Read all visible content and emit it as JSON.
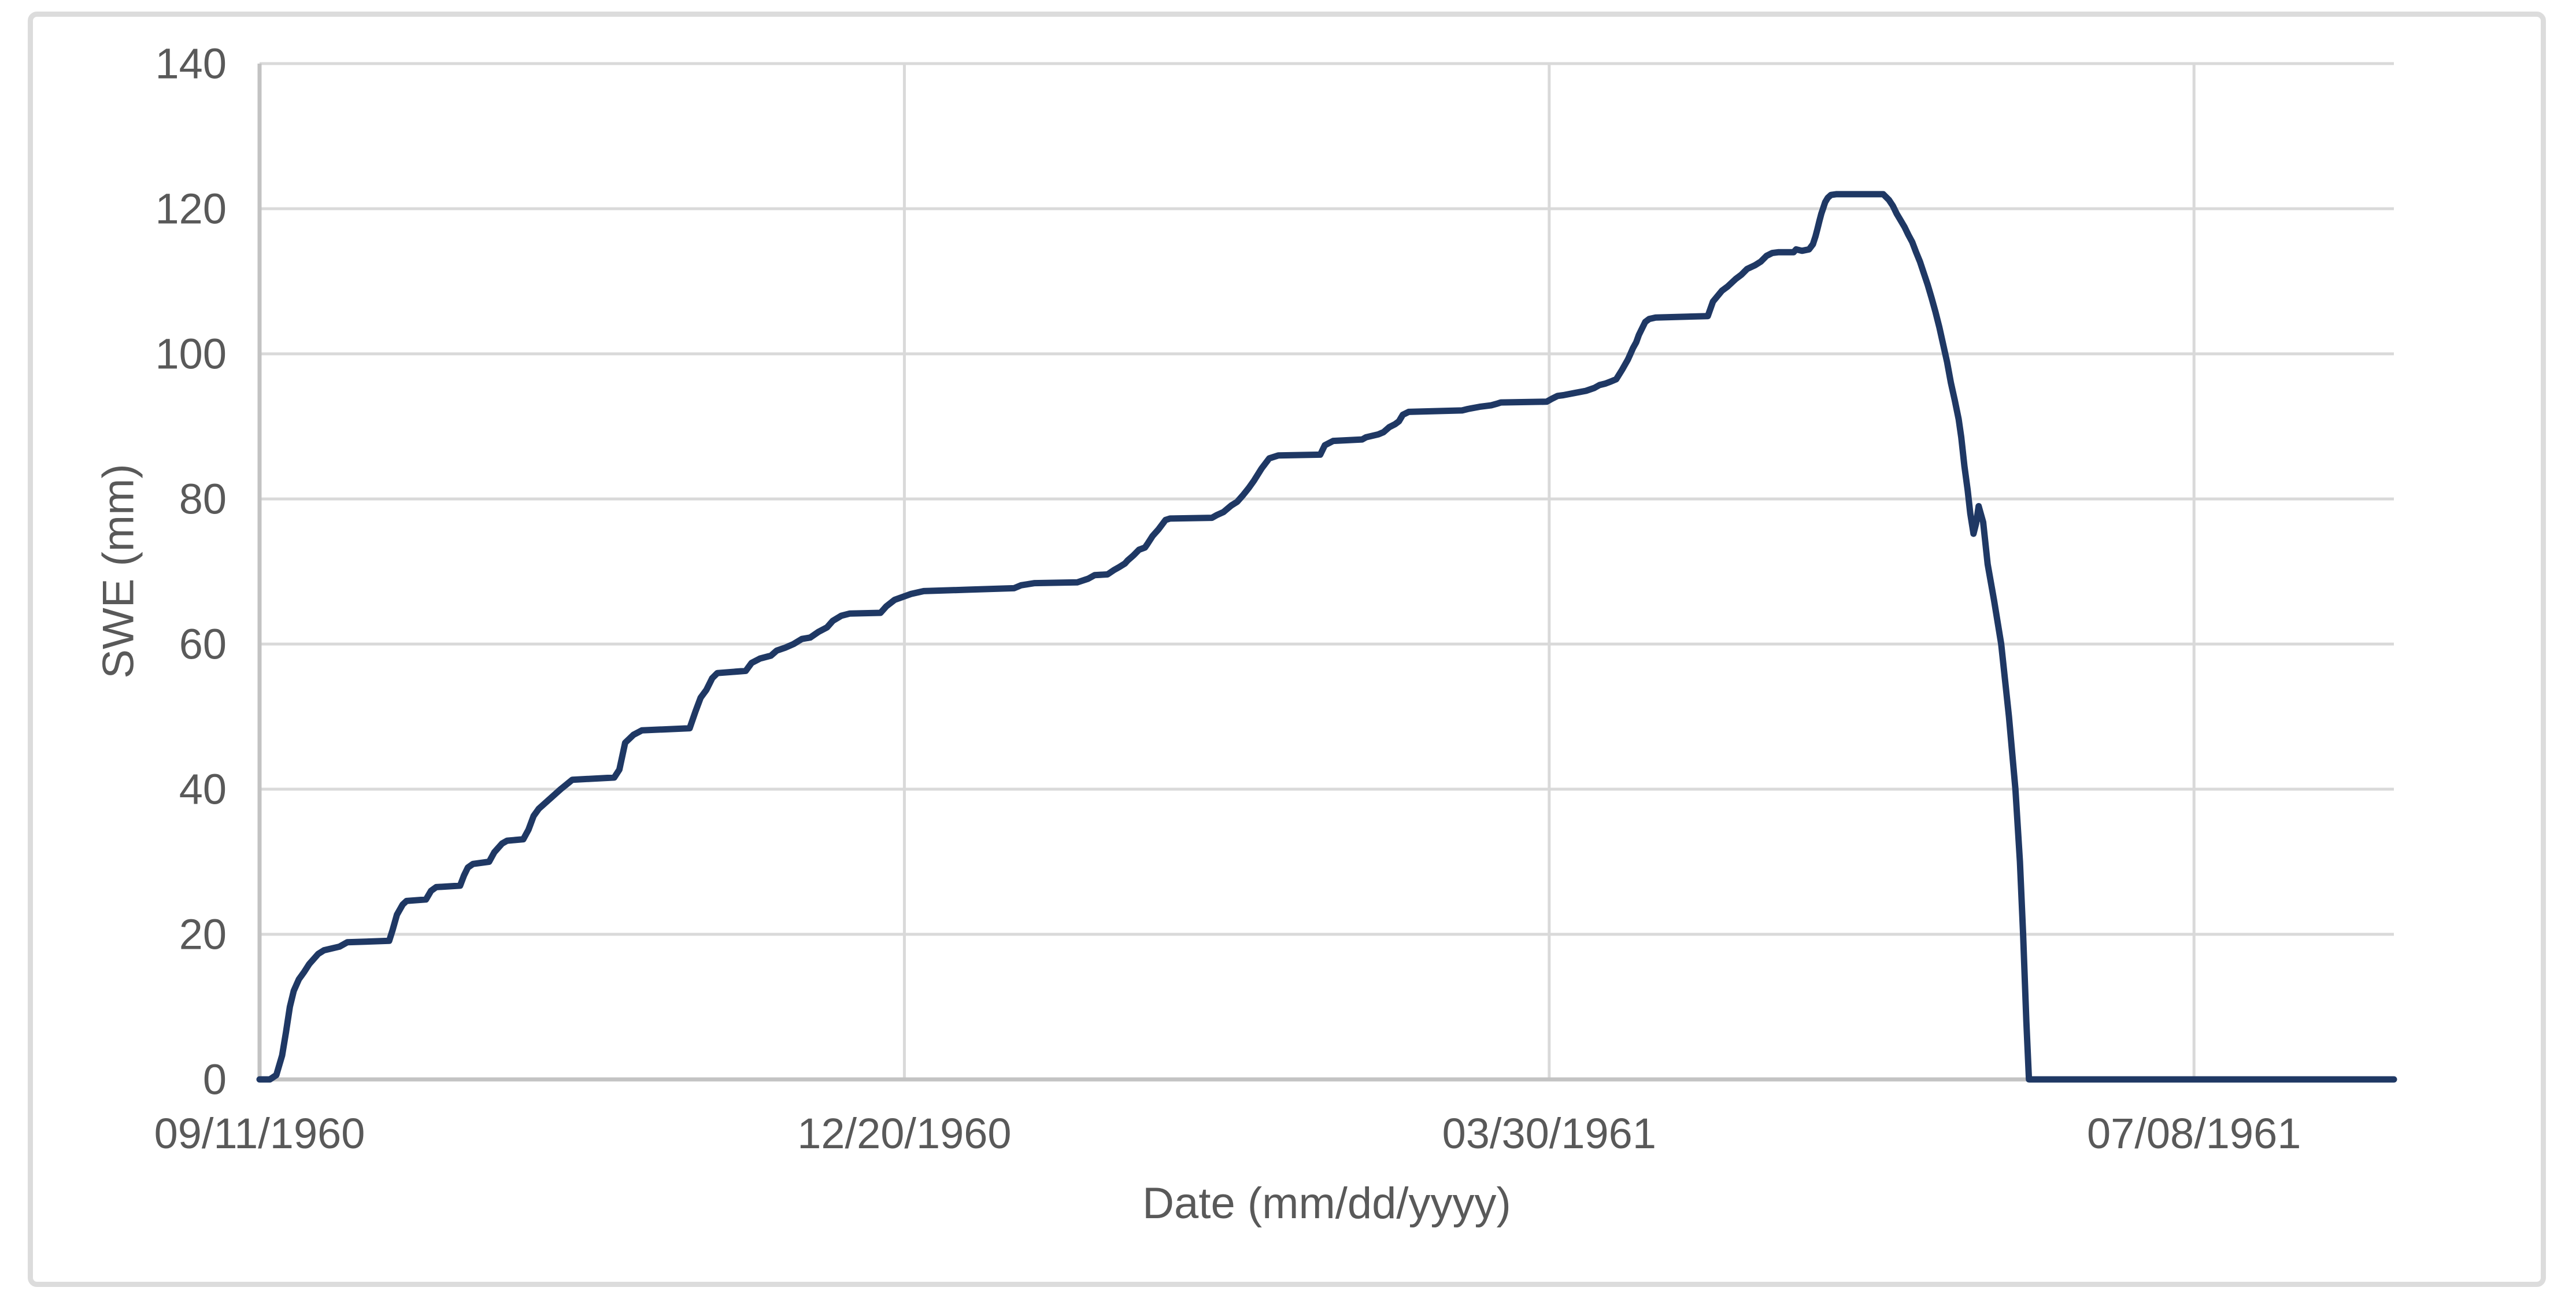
{
  "figure": {
    "title": "",
    "xlabel": "Date (mm/dd/yyyy)",
    "ylabel": "SWE (mm)"
  },
  "chart_data": {
    "type": "line",
    "title": "",
    "xlabel": "Date (mm/dd/yyyy)",
    "ylabel": "SWE (mm)",
    "legend": "none",
    "grid": "major horizontal and vertical gridlines on",
    "x_tick_labels": [
      "09/11/1960",
      "12/20/1960",
      "03/30/1961",
      "07/08/1961"
    ],
    "x_tick_days": [
      0,
      100,
      200,
      300
    ],
    "x_start_date": "09/11/1960",
    "x_range_days": [
      0,
      331
    ],
    "yticks": [
      0,
      20,
      40,
      60,
      80,
      100,
      120,
      140
    ],
    "ylim": [
      0,
      140
    ],
    "colors": {
      "line": "#1f3864",
      "gridline": "#d9d9d9",
      "axis": "#c3c3c3",
      "tick_text": "#595959",
      "border": "#dcdcdc",
      "background": "#ffffff"
    },
    "series": [
      {
        "name": "SWE",
        "color": "#1f3864",
        "points": [
          [
            0,
            0
          ],
          [
            1.6,
            0
          ],
          [
            2.6,
            0.6
          ],
          [
            3.5,
            3.3
          ],
          [
            4.1,
            6.5
          ],
          [
            4.7,
            10
          ],
          [
            5.3,
            12.2
          ],
          [
            6.1,
            13.8
          ],
          [
            6.9,
            14.8
          ],
          [
            7.7,
            15.9
          ],
          [
            9.1,
            17.3
          ],
          [
            10,
            17.8
          ],
          [
            12.4,
            18.3
          ],
          [
            13.6,
            18.9
          ],
          [
            20.1,
            19.1
          ],
          [
            20.6,
            20.5
          ],
          [
            21.3,
            22.7
          ],
          [
            22.2,
            24.1
          ],
          [
            22.8,
            24.6
          ],
          [
            25.8,
            24.8
          ],
          [
            26.6,
            26
          ],
          [
            27.4,
            26.5
          ],
          [
            31.1,
            26.7
          ],
          [
            31.7,
            28.1
          ],
          [
            32.3,
            29.2
          ],
          [
            33.1,
            29.7
          ],
          [
            35.6,
            30
          ],
          [
            36.4,
            31.3
          ],
          [
            37.6,
            32.5
          ],
          [
            38.4,
            32.9
          ],
          [
            40.9,
            33.1
          ],
          [
            41.7,
            34.4
          ],
          [
            42.5,
            36.3
          ],
          [
            43.3,
            37.3
          ],
          [
            46.7,
            40
          ],
          [
            48.5,
            41.3
          ],
          [
            55,
            41.6
          ],
          [
            55.8,
            42.7
          ],
          [
            56.7,
            46.4
          ],
          [
            58,
            47.5
          ],
          [
            59.3,
            48.1
          ],
          [
            66.7,
            48.4
          ],
          [
            67.6,
            50.7
          ],
          [
            68.4,
            52.6
          ],
          [
            69.3,
            53.7
          ],
          [
            70.2,
            55.3
          ],
          [
            71,
            56
          ],
          [
            75.4,
            56.3
          ],
          [
            76.3,
            57.4
          ],
          [
            77.6,
            58
          ],
          [
            79.3,
            58.4
          ],
          [
            80.2,
            59.1
          ],
          [
            81.5,
            59.5
          ],
          [
            82.8,
            60
          ],
          [
            84.1,
            60.7
          ],
          [
            85.4,
            60.9
          ],
          [
            86.7,
            61.7
          ],
          [
            88,
            62.3
          ],
          [
            88.9,
            63.2
          ],
          [
            90.2,
            63.9
          ],
          [
            91.5,
            64.2
          ],
          [
            96.3,
            64.3
          ],
          [
            97.2,
            65.2
          ],
          [
            98.5,
            66.1
          ],
          [
            101,
            66.9
          ],
          [
            103,
            67.3
          ],
          [
            110,
            67.5
          ],
          [
            117,
            67.7
          ],
          [
            118.1,
            68.1
          ],
          [
            120.2,
            68.4
          ],
          [
            126.8,
            68.5
          ],
          [
            128.5,
            69
          ],
          [
            129.5,
            69.5
          ],
          [
            131.5,
            69.6
          ],
          [
            132.5,
            70.2
          ],
          [
            133.3,
            70.6
          ],
          [
            134.2,
            71.1
          ],
          [
            134.6,
            71.5
          ],
          [
            135.5,
            72.2
          ],
          [
            136.4,
            73
          ],
          [
            137.3,
            73.3
          ],
          [
            137.7,
            73.8
          ],
          [
            138.5,
            74.9
          ],
          [
            139.4,
            75.8
          ],
          [
            140.5,
            77.1
          ],
          [
            141.2,
            77.3
          ],
          [
            147.7,
            77.4
          ],
          [
            148.5,
            77.8
          ],
          [
            149.5,
            78.2
          ],
          [
            150.7,
            79.1
          ],
          [
            151.6,
            79.6
          ],
          [
            152.5,
            80.5
          ],
          [
            153.4,
            81.5
          ],
          [
            154.2,
            82.5
          ],
          [
            155.4,
            84.2
          ],
          [
            156.6,
            85.6
          ],
          [
            158,
            86
          ],
          [
            164.5,
            86.1
          ],
          [
            165.2,
            87.4
          ],
          [
            166.5,
            88
          ],
          [
            171,
            88.2
          ],
          [
            171.6,
            88.5
          ],
          [
            173.5,
            88.9
          ],
          [
            174.3,
            89.2
          ],
          [
            175.2,
            89.9
          ],
          [
            176.1,
            90.3
          ],
          [
            176.7,
            90.7
          ],
          [
            177.3,
            91.6
          ],
          [
            178.2,
            92
          ],
          [
            186.5,
            92.2
          ],
          [
            187.4,
            92.4
          ],
          [
            189.2,
            92.7
          ],
          [
            191,
            92.9
          ],
          [
            191.8,
            93.1
          ],
          [
            192.5,
            93.3
          ],
          [
            199.6,
            93.4
          ],
          [
            200.4,
            93.8
          ],
          [
            201.3,
            94.2
          ],
          [
            202.2,
            94.3
          ],
          [
            203.9,
            94.6
          ],
          [
            205.7,
            94.9
          ],
          [
            207,
            95.3
          ],
          [
            207.8,
            95.7
          ],
          [
            208.7,
            95.9
          ],
          [
            209.6,
            96.2
          ],
          [
            210.4,
            96.5
          ],
          [
            211.3,
            97.8
          ],
          [
            212.2,
            99.2
          ],
          [
            212.6,
            100
          ],
          [
            213,
            100.8
          ],
          [
            213.5,
            101.6
          ],
          [
            213.9,
            102.6
          ],
          [
            214.4,
            103.5
          ],
          [
            214.9,
            104.4
          ],
          [
            215.5,
            104.8
          ],
          [
            216.5,
            105
          ],
          [
            224.6,
            105.2
          ],
          [
            225.4,
            107.2
          ],
          [
            226.8,
            108.7
          ],
          [
            227.7,
            109.3
          ],
          [
            228.9,
            110.3
          ],
          [
            229.8,
            110.9
          ],
          [
            230.7,
            111.7
          ],
          [
            231.9,
            112.2
          ],
          [
            232.8,
            112.7
          ],
          [
            233.7,
            113.5
          ],
          [
            234.6,
            113.9
          ],
          [
            235.5,
            114
          ],
          [
            237.9,
            114
          ],
          [
            238.3,
            114.4
          ],
          [
            239.2,
            114.2
          ],
          [
            240.3,
            114.4
          ],
          [
            240.9,
            115.1
          ],
          [
            241.3,
            116.2
          ],
          [
            241.6,
            117.2
          ],
          [
            241.9,
            118.3
          ],
          [
            242.2,
            119.3
          ],
          [
            242.5,
            120.1
          ],
          [
            242.8,
            120.9
          ],
          [
            243.2,
            121.5
          ],
          [
            243.7,
            121.9
          ],
          [
            244.5,
            122
          ],
          [
            251.8,
            122
          ],
          [
            252.7,
            121.2
          ],
          [
            253.3,
            120.4
          ],
          [
            253.9,
            119.3
          ],
          [
            254.5,
            118.4
          ],
          [
            255.1,
            117.5
          ],
          [
            255.7,
            116.4
          ],
          [
            256.3,
            115.4
          ],
          [
            256.9,
            114
          ],
          [
            257.5,
            112.7
          ],
          [
            258.1,
            111.1
          ],
          [
            258.7,
            109.5
          ],
          [
            259.3,
            107.7
          ],
          [
            259.9,
            105.8
          ],
          [
            260.5,
            103.7
          ],
          [
            261.1,
            101.3
          ],
          [
            261.7,
            98.9
          ],
          [
            262.3,
            96
          ],
          [
            262.9,
            93.6
          ],
          [
            263.5,
            91
          ],
          [
            263.9,
            88.5
          ],
          [
            264.4,
            84.5
          ],
          [
            264.9,
            81.2
          ],
          [
            265.3,
            78
          ],
          [
            265.8,
            75.2
          ],
          [
            266.2,
            76.6
          ],
          [
            266.6,
            79
          ],
          [
            267.3,
            76.8
          ],
          [
            268,
            71
          ],
          [
            269,
            66
          ],
          [
            270.1,
            60
          ],
          [
            271.3,
            50
          ],
          [
            272.3,
            40
          ],
          [
            273,
            30
          ],
          [
            273.5,
            20
          ],
          [
            274,
            8
          ],
          [
            274.4,
            0
          ],
          [
            331,
            0
          ]
        ]
      }
    ]
  }
}
